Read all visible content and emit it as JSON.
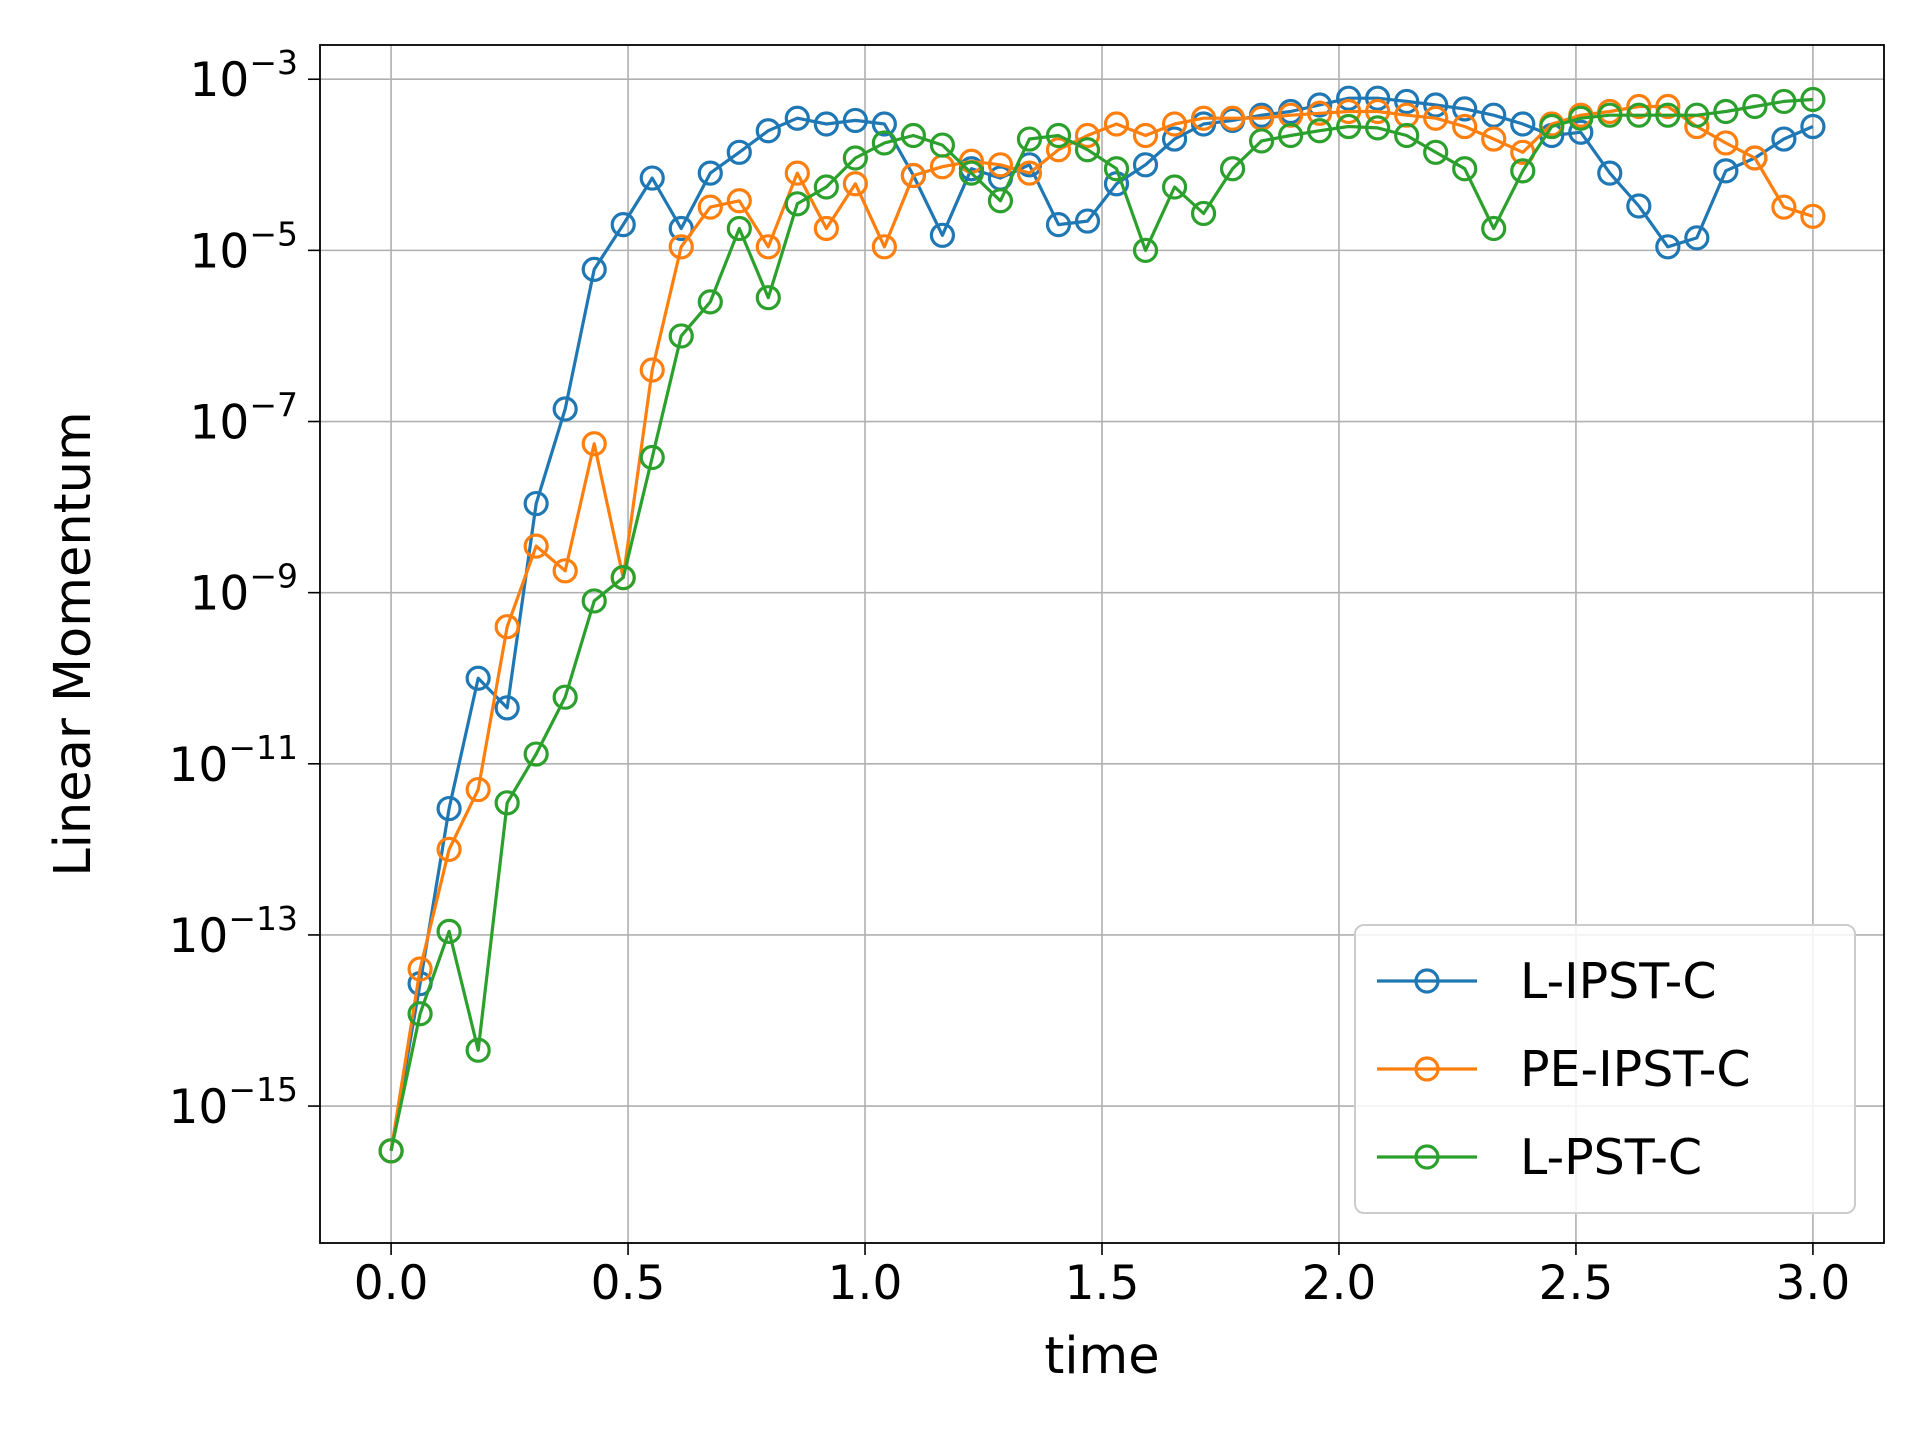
{
  "chart_data": {
    "type": "line",
    "title": "",
    "xlabel": "time",
    "ylabel": "Linear Momentum",
    "xlim": [
      -0.15,
      3.15
    ],
    "ylim": [
      -16.6,
      -2.6
    ],
    "yscale": "log",
    "grid": true,
    "legend_position": "bottom-right",
    "x_ticks": [
      "0.0",
      "0.5",
      "1.0",
      "1.5",
      "2.0",
      "2.5",
      "3.0"
    ],
    "y_ticks": [
      {
        "base": "10",
        "exp": "−3",
        "value": 0.001
      },
      {
        "base": "10",
        "exp": "−5",
        "value": 1e-05
      },
      {
        "base": "10",
        "exp": "−7",
        "value": 1e-07
      },
      {
        "base": "10",
        "exp": "−9",
        "value": 1e-09
      },
      {
        "base": "10",
        "exp": "−11",
        "value": 1e-11
      },
      {
        "base": "10",
        "exp": "−13",
        "value": 1e-13
      },
      {
        "base": "10",
        "exp": "−15",
        "value": 1e-15
      }
    ],
    "x": [
      0.0,
      0.0612,
      0.1224,
      0.1837,
      0.2449,
      0.3061,
      0.3673,
      0.4286,
      0.4898,
      0.551,
      0.6122,
      0.6735,
      0.7347,
      0.7959,
      0.8571,
      0.9184,
      0.9796,
      1.0408,
      1.102,
      1.1633,
      1.2245,
      1.2857,
      1.3469,
      1.4082,
      1.4694,
      1.5306,
      1.5918,
      1.6531,
      1.7143,
      1.7755,
      1.8367,
      1.898,
      1.9592,
      2.0204,
      2.0816,
      2.1429,
      2.2041,
      2.2653,
      2.3265,
      2.3878,
      2.449,
      2.5102,
      2.5714,
      2.6327,
      2.6939,
      2.7551,
      2.8163,
      2.8776,
      2.9388,
      3.0
    ],
    "series": [
      {
        "name": "L-IPST-C",
        "color": "#1f77b4",
        "values": [
          3e-16,
          2.7e-14,
          3e-12,
          1e-10,
          4.5e-11,
          1.1e-08,
          1.4e-07,
          6e-06,
          2e-05,
          7e-05,
          1.8e-05,
          8e-05,
          0.00014,
          0.00025,
          0.00035,
          0.0003,
          0.00033,
          0.0003,
          7.5e-05,
          1.5e-05,
          9e-05,
          7e-05,
          0.0001,
          2e-05,
          2.2e-05,
          6e-05,
          0.0001,
          0.0002,
          0.0003,
          0.00033,
          0.00038,
          0.00042,
          0.0005,
          0.0006,
          0.0006,
          0.00055,
          0.0005,
          0.00045,
          0.00038,
          0.0003,
          0.00022,
          0.00024,
          8e-05,
          3.3e-05,
          1.1e-05,
          1.4e-05,
          8.5e-05,
          0.00012,
          0.0002,
          0.00028
        ]
      },
      {
        "name": "PE-IPST-C",
        "color": "#ff7f0e",
        "values": [
          3e-16,
          4e-14,
          1e-12,
          5e-12,
          4e-10,
          3.5e-09,
          1.8e-09,
          5.5e-08,
          1.5e-09,
          4e-07,
          1.1e-05,
          3.2e-05,
          3.8e-05,
          1.1e-05,
          8e-05,
          1.8e-05,
          6e-05,
          1.1e-05,
          7.5e-05,
          9.5e-05,
          0.00011,
          0.0001,
          8e-05,
          0.00015,
          0.00022,
          0.0003,
          0.00022,
          0.0003,
          0.00035,
          0.00035,
          0.00035,
          0.00038,
          0.0004,
          0.00042,
          0.00042,
          0.00038,
          0.00035,
          0.00028,
          0.0002,
          0.00014,
          0.0003,
          0.00038,
          0.00042,
          0.00048,
          0.00048,
          0.00028,
          0.00018,
          0.00012,
          3.2e-05,
          2.5e-05
        ]
      },
      {
        "name": "L-PST-C",
        "color": "#2ca02c",
        "values": [
          3e-16,
          1.2e-14,
          1.1e-13,
          4.5e-15,
          3.5e-12,
          1.3e-11,
          6e-11,
          8e-10,
          1.5e-09,
          3.8e-08,
          1e-06,
          2.5e-06,
          1.8e-05,
          2.8e-06,
          3.5e-05,
          5.5e-05,
          0.00012,
          0.00018,
          0.00022,
          0.00017,
          8e-05,
          3.8e-05,
          0.0002,
          0.00022,
          0.00015,
          9e-05,
          1e-05,
          5.5e-05,
          2.7e-05,
          9e-05,
          0.00019,
          0.00022,
          0.00025,
          0.00028,
          0.00027,
          0.00022,
          0.00014,
          9e-05,
          1.8e-05,
          8.5e-05,
          0.00028,
          0.00035,
          0.00038,
          0.00038,
          0.00038,
          0.00038,
          0.00042,
          0.00048,
          0.00055,
          0.00058
        ]
      }
    ]
  }
}
